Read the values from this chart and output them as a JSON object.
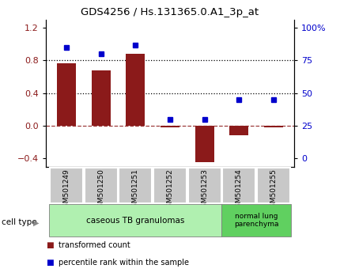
{
  "title": "GDS4256 / Hs.131365.0.A1_3p_at",
  "samples": [
    "GSM501249",
    "GSM501250",
    "GSM501251",
    "GSM501252",
    "GSM501253",
    "GSM501254",
    "GSM501255"
  ],
  "transformed_count": [
    0.77,
    0.68,
    0.88,
    -0.02,
    -0.45,
    -0.12,
    -0.02
  ],
  "percentile_rank": [
    85,
    80,
    87,
    30,
    30,
    45,
    45
  ],
  "bar_color": "#8B1A1A",
  "dot_color": "#0000CC",
  "left_ylim": [
    -0.5,
    1.3
  ],
  "left_yticks": [
    -0.4,
    0.0,
    0.4,
    0.8,
    1.2
  ],
  "right_ylim": [
    -6.25,
    106.25
  ],
  "right_yticks": [
    0,
    25,
    50,
    75,
    100
  ],
  "right_yticklabels": [
    "0",
    "25",
    "50",
    "75",
    "100%"
  ],
  "group0_color": "#b0f0b0",
  "group1_color": "#60d060",
  "group0_label": "caseous TB granulomas",
  "group1_label": "normal lung\nparenchyma",
  "legend_red_label": "transformed count",
  "legend_blue_label": "percentile rank within the sample",
  "cell_type_label": "cell type",
  "background_color": "#ffffff",
  "tick_area_color": "#c8c8c8",
  "bar_width": 0.55,
  "dot_size": 5
}
